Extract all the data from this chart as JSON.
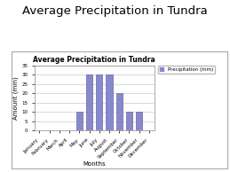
{
  "title_main": "Average Precipitation in Tundra",
  "chart_title": "Average Precipitation in Tundra",
  "months": [
    "January",
    "February",
    "March",
    "April",
    "May",
    "June",
    "July",
    "August",
    "September",
    "October",
    "November",
    "December"
  ],
  "values": [
    0,
    0,
    0,
    0,
    10,
    30,
    30,
    30,
    20,
    10,
    10,
    0
  ],
  "bar_color": "#8888cc",
  "bar_edge_color": "#6666aa",
  "ylabel": "Amount (mm)",
  "xlabel": "Months",
  "ylim": [
    0,
    35
  ],
  "yticks": [
    0,
    5,
    10,
    15,
    20,
    25,
    30,
    35
  ],
  "legend_label": "Precipitation (mm)",
  "chart_bg": "#ffffff",
  "outer_bg": "#ffffff",
  "title_fontsize": 9.5,
  "chart_title_fontsize": 5.5,
  "tick_fontsize": 4.0,
  "label_fontsize": 5.0,
  "legend_fontsize": 4.0
}
